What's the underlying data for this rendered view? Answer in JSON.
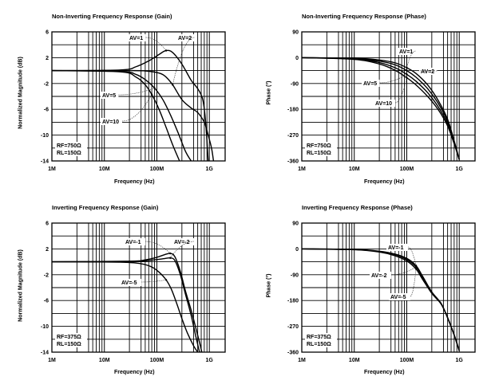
{
  "chart_data": [
    {
      "id": "ni-gain",
      "type": "line",
      "title": "Non-Inverting Frequency Response (Gain)",
      "xlabel": "Frequency (Hz)",
      "ylabel": "Normalized Magnitude (dB)",
      "xscale": "log",
      "xlim": [
        1000000,
        2000000000
      ],
      "ylim": [
        -14,
        6
      ],
      "xticks": [
        {
          "v": 1000000,
          "label": "1M"
        },
        {
          "v": 10000000,
          "label": "10M"
        },
        {
          "v": 100000000,
          "label": "100M"
        },
        {
          "v": 1000000000,
          "label": "1G"
        }
      ],
      "yticks": [
        {
          "v": 6,
          "label": "6"
        },
        {
          "v": 2,
          "label": "2"
        },
        {
          "v": -2,
          "label": "-2"
        },
        {
          "v": -6,
          "label": "-6"
        },
        {
          "v": -10,
          "label": "-10"
        },
        {
          "v": -14,
          "label": "-14"
        }
      ],
      "ygrid_step": 2,
      "grid": true,
      "annotation": [
        "RF=750Ω",
        "RL=150Ω"
      ],
      "series": [
        {
          "name": "AV=1",
          "label": "AV=1",
          "x": [
            1000000.0,
            20000000.0,
            40000000.0,
            70000000.0,
            110000000.0,
            150000000.0,
            200000000.0,
            300000000.0,
            450000000.0,
            600000000.0,
            750000000.0,
            850000000.0,
            950000000.0
          ],
          "y": [
            0,
            0.1,
            0.6,
            1.5,
            2.5,
            3.1,
            2.8,
            1.0,
            -1.5,
            -2.8,
            -4.5,
            -8,
            -14
          ]
        },
        {
          "name": "AV=2",
          "label": "AV=2",
          "x": [
            1000000.0,
            30000000.0,
            60000000.0,
            100000000.0,
            140000000.0,
            200000000.0,
            300000000.0,
            450000000.0,
            600000000.0,
            800000000.0,
            950000000.0,
            1100000000.0,
            1200000000.0
          ],
          "y": [
            0,
            0,
            -0.05,
            -0.3,
            -0.8,
            -2.2,
            -4.5,
            -5.8,
            -6.5,
            -8,
            -10,
            -12,
            -14
          ]
        },
        {
          "name": "AV=5",
          "label": "AV=5",
          "x": [
            1000000.0,
            20000000.0,
            40000000.0,
            60000000.0,
            90000000.0,
            130000000.0,
            180000000.0,
            250000000.0,
            350000000.0,
            450000000.0
          ],
          "y": [
            0,
            -0.1,
            -0.6,
            -1.4,
            -2.7,
            -4.5,
            -6.8,
            -9.5,
            -12.5,
            -14
          ]
        },
        {
          "name": "AV=10",
          "label": "AV=10",
          "x": [
            1000000.0,
            20000000.0,
            40000000.0,
            60000000.0,
            80000000.0,
            110000000.0,
            150000000.0,
            200000000.0,
            270000000.0
          ],
          "y": [
            0,
            -0.2,
            -1.0,
            -2.2,
            -3.7,
            -6.0,
            -8.8,
            -11.5,
            -14
          ]
        }
      ],
      "labels": [
        {
          "text": "AV=1",
          "series": "AV=1"
        },
        {
          "text": "AV=2",
          "series": "AV=2"
        },
        {
          "text": "AV=5",
          "series": "AV=5"
        },
        {
          "text": "AV=10",
          "series": "AV=10"
        }
      ]
    },
    {
      "id": "ni-phase",
      "type": "line",
      "title": "Non-Inverting Frequency Response (Phase)",
      "xlabel": "Frequency (Hz)",
      "ylabel": "Phase (°)",
      "xscale": "log",
      "xlim": [
        1000000,
        2000000000
      ],
      "ylim": [
        -360,
        90
      ],
      "xticks": [
        {
          "v": 1000000,
          "label": "1M"
        },
        {
          "v": 10000000,
          "label": "10M"
        },
        {
          "v": 100000000,
          "label": "100M"
        },
        {
          "v": 1000000000,
          "label": "1G"
        }
      ],
      "yticks": [
        {
          "v": 90,
          "label": "90"
        },
        {
          "v": 0,
          "label": "0"
        },
        {
          "v": -90,
          "label": "-90"
        },
        {
          "v": -180,
          "label": "-180"
        },
        {
          "v": -270,
          "label": "-270"
        },
        {
          "v": -360,
          "label": "-360"
        }
      ],
      "ygrid_step": 45,
      "grid": true,
      "annotation": [
        "RF=750Ω",
        "RL=150Ω"
      ],
      "series": [
        {
          "name": "AV=1",
          "label": "AV=1",
          "x": [
            1000000.0,
            10000000.0,
            30000000.0,
            60000000.0,
            100000000.0,
            150000000.0,
            250000000.0,
            400000000.0,
            600000000.0,
            800000000.0,
            1000000000.0
          ],
          "y": [
            0,
            -2,
            -8,
            -18,
            -35,
            -55,
            -95,
            -150,
            -215,
            -290,
            -355
          ]
        },
        {
          "name": "AV=2",
          "label": "AV=2",
          "x": [
            1000000.0,
            10000000.0,
            30000000.0,
            60000000.0,
            100000000.0,
            150000000.0,
            250000000.0,
            400000000.0,
            600000000.0,
            800000000.0,
            1000000000.0
          ],
          "y": [
            0,
            -3,
            -12,
            -25,
            -45,
            -68,
            -108,
            -160,
            -222,
            -292,
            -355
          ]
        },
        {
          "name": "AV=5",
          "label": "AV=5",
          "x": [
            1000000.0,
            10000000.0,
            30000000.0,
            60000000.0,
            100000000.0,
            150000000.0,
            250000000.0,
            400000000.0,
            600000000.0,
            800000000.0,
            1000000000.0
          ],
          "y": [
            0,
            -4,
            -17,
            -35,
            -58,
            -82,
            -122,
            -172,
            -230,
            -296,
            -355
          ]
        },
        {
          "name": "AV=10",
          "label": "AV=10",
          "x": [
            1000000.0,
            10000000.0,
            30000000.0,
            60000000.0,
            100000000.0,
            150000000.0,
            250000000.0,
            400000000.0,
            600000000.0,
            800000000.0,
            1000000000.0
          ],
          "y": [
            0,
            -6,
            -22,
            -44,
            -70,
            -95,
            -135,
            -182,
            -238,
            -300,
            -355
          ]
        }
      ],
      "labels": [
        {
          "text": "AV=1",
          "series": "AV=1"
        },
        {
          "text": "AV=2",
          "series": "AV=2"
        },
        {
          "text": "AV=5",
          "series": "AV=5"
        },
        {
          "text": "AV=10",
          "series": "AV=10"
        }
      ]
    },
    {
      "id": "inv-gain",
      "type": "line",
      "title": "Inverting Frequency Response (Gain)",
      "xlabel": "Frequency (Hz)",
      "ylabel": "Normalized Magnitude (dB)",
      "xscale": "log",
      "xlim": [
        1000000,
        2000000000
      ],
      "ylim": [
        -14,
        6
      ],
      "xticks": [
        {
          "v": 1000000,
          "label": "1M"
        },
        {
          "v": 10000000,
          "label": "10M"
        },
        {
          "v": 100000000,
          "label": "100M"
        },
        {
          "v": 1000000000,
          "label": "1G"
        }
      ],
      "yticks": [
        {
          "v": 6,
          "label": "6"
        },
        {
          "v": 2,
          "label": "2"
        },
        {
          "v": -2,
          "label": "-2"
        },
        {
          "v": -6,
          "label": "-6"
        },
        {
          "v": -10,
          "label": "-10"
        },
        {
          "v": -14,
          "label": "-14"
        }
      ],
      "ygrid_step": 2,
      "grid": true,
      "annotation": [
        "RF=375Ω",
        "RL=150Ω"
      ],
      "series": [
        {
          "name": "AV=-1",
          "label": "AV=-1",
          "x": [
            1000000.0,
            30000000.0,
            60000000.0,
            100000000.0,
            140000000.0,
            180000000.0,
            220000000.0,
            280000000.0,
            350000000.0,
            450000000.0,
            550000000.0,
            650000000.0,
            720000000.0
          ],
          "y": [
            0,
            0.1,
            0.3,
            0.7,
            1.1,
            1.3,
            0.8,
            -1.5,
            -4.5,
            -7.5,
            -10.2,
            -12.5,
            -14
          ]
        },
        {
          "name": "AV=-2",
          "label": "AV=-2",
          "x": [
            1000000.0,
            30000000.0,
            60000000.0,
            100000000.0,
            140000000.0,
            180000000.0,
            220000000.0,
            280000000.0,
            350000000.0,
            450000000.0,
            550000000.0,
            650000000.0
          ],
          "y": [
            0,
            0.05,
            0.15,
            0.35,
            0.5,
            0.6,
            0.2,
            -2,
            -5,
            -8.3,
            -11.5,
            -14
          ]
        },
        {
          "name": "AV=-5",
          "label": "AV=-5",
          "x": [
            1000000.0,
            20000000.0,
            50000000.0,
            80000000.0,
            110000000.0,
            150000000.0,
            190000000.0,
            240000000.0,
            300000000.0,
            380000000.0,
            500000000.0,
            600000000.0
          ],
          "y": [
            0,
            -0.05,
            -0.3,
            -0.8,
            -1.6,
            -2.8,
            -4.3,
            -6.5,
            -8.8,
            -11,
            -13,
            -14
          ]
        }
      ],
      "labels": [
        {
          "text": "AV=-1",
          "series": "AV=-1"
        },
        {
          "text": "AV=-2",
          "series": "AV=-2"
        },
        {
          "text": "AV=-5",
          "series": "AV=-5"
        }
      ]
    },
    {
      "id": "inv-phase",
      "type": "line",
      "title": "Inverting Frequency Response (Phase)",
      "xlabel": "Frequency (Hz)",
      "ylabel": "Phase (°)",
      "xscale": "log",
      "xlim": [
        1000000,
        2000000000
      ],
      "ylim": [
        -360,
        90
      ],
      "xticks": [
        {
          "v": 1000000,
          "label": "1M"
        },
        {
          "v": 10000000,
          "label": "10M"
        },
        {
          "v": 100000000,
          "label": "100M"
        },
        {
          "v": 1000000000,
          "label": "1G"
        }
      ],
      "yticks": [
        {
          "v": 90,
          "label": "90"
        },
        {
          "v": 0,
          "label": "0"
        },
        {
          "v": -90,
          "label": "-90"
        },
        {
          "v": -180,
          "label": "-180"
        },
        {
          "v": -270,
          "label": "-270"
        },
        {
          "v": -360,
          "label": "-360"
        }
      ],
      "ygrid_step": 45,
      "grid": true,
      "annotation": [
        "RF=375Ω",
        "RL=150Ω"
      ],
      "series": [
        {
          "name": "AV=-1",
          "label": "AV=-1",
          "x": [
            1000000.0,
            10000000.0,
            30000000.0,
            60000000.0,
            100000000.0,
            150000000.0,
            200000000.0,
            300000000.0,
            450000000.0,
            600000000.0,
            800000000.0,
            1000000000.0
          ],
          "y": [
            0,
            -2,
            -8,
            -18,
            -33,
            -58,
            -95,
            -150,
            -190,
            -240,
            -300,
            -355
          ]
        },
        {
          "name": "AV=-2",
          "label": "AV=-2",
          "x": [
            1000000.0,
            10000000.0,
            30000000.0,
            60000000.0,
            100000000.0,
            150000000.0,
            200000000.0,
            300000000.0,
            450000000.0,
            600000000.0,
            800000000.0,
            1000000000.0
          ],
          "y": [
            0,
            -2,
            -9,
            -20,
            -37,
            -63,
            -100,
            -152,
            -190,
            -240,
            -300,
            -355
          ]
        },
        {
          "name": "AV=-5",
          "label": "AV=-5",
          "x": [
            1000000.0,
            10000000.0,
            30000000.0,
            60000000.0,
            100000000.0,
            150000000.0,
            200000000.0,
            300000000.0,
            450000000.0,
            600000000.0,
            800000000.0,
            1000000000.0
          ],
          "y": [
            0,
            -3,
            -11,
            -24,
            -42,
            -70,
            -106,
            -155,
            -192,
            -240,
            -300,
            -355
          ]
        }
      ],
      "labels": [
        {
          "text": "AV=-1",
          "series": "AV=-1"
        },
        {
          "text": "AV=-2",
          "series": "AV=-2"
        },
        {
          "text": "AV=-5",
          "series": "AV=-5"
        }
      ]
    }
  ]
}
